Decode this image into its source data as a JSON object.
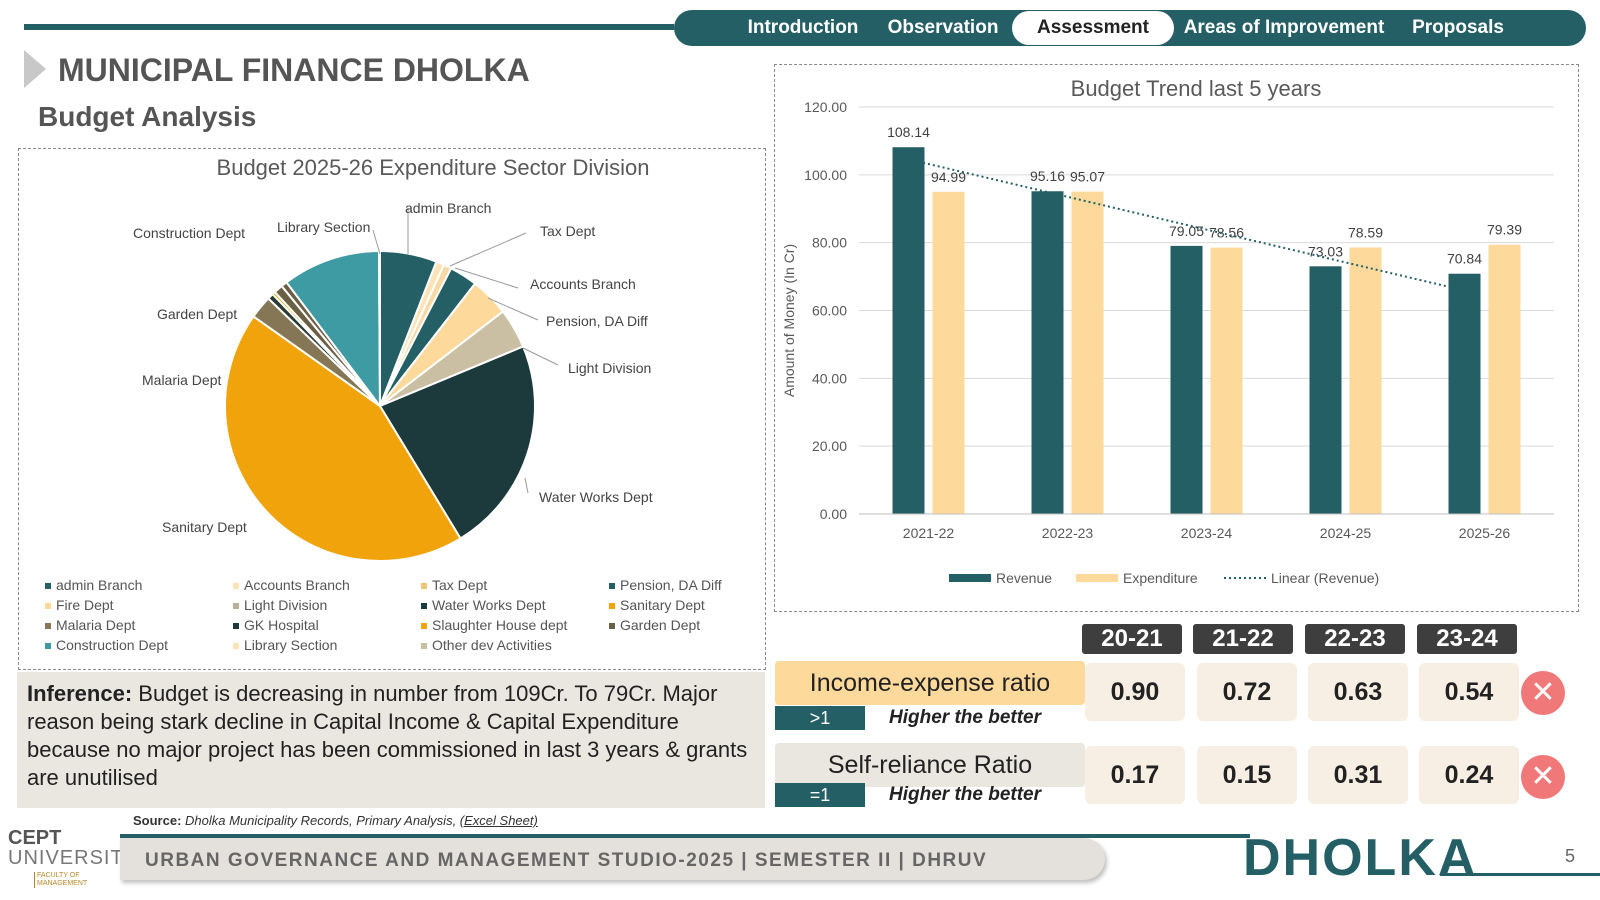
{
  "nav": {
    "items": [
      "Introduction",
      "Observation",
      "Assessment",
      "Areas of Improvement",
      "Proposals"
    ],
    "active": "Assessment"
  },
  "header": {
    "title": "MUNICIPAL FINANCE DHOLKA",
    "subtitle": "Budget Analysis"
  },
  "colors": {
    "accent": "#255f66",
    "revenue": "#255f66",
    "expenditure": "#fdd99b",
    "sanitary": "#f0a30a",
    "waterworks": "#1c3a3b"
  },
  "chart_data": [
    {
      "type": "pie",
      "title": "Budget 2025-26 Expenditure Sector Division",
      "slices": [
        {
          "name": "admin Branch",
          "value": 5.7,
          "color": "#255f66"
        },
        {
          "name": "Fire Dept",
          "value": 0.8,
          "color": "#fde3b5"
        },
        {
          "name": "Accounts Branch",
          "value": 0.8,
          "color": "#f7d9a6"
        },
        {
          "name": "Tax Dept",
          "value": 2.8,
          "color": "#255f66"
        },
        {
          "name": "Pension, DA Diff",
          "value": 3.9,
          "color": "#fdd99b"
        },
        {
          "name": "Light Division",
          "value": 4.0,
          "color": "#cbbfa3"
        },
        {
          "name": "Water Works Dept",
          "value": 21.7,
          "color": "#1c3a3b"
        },
        {
          "name": "Sanitary Dept",
          "value": 41.8,
          "color": "#f0a30a"
        },
        {
          "name": "Malaria Dept",
          "value": 2.3,
          "color": "#857756"
        },
        {
          "name": "GK Hospital",
          "value": 0.6,
          "color": "#2c3b33"
        },
        {
          "name": "Slaughter House dept",
          "value": 0.3,
          "color": "#f0a30a"
        },
        {
          "name": "Garden Dept",
          "value": 0.9,
          "color": "#6b6046"
        },
        {
          "name": "Construction Dept",
          "value": 0.6,
          "color": "#6b6046"
        },
        {
          "name": "Library Section",
          "value": 9.8,
          "color": "#3e9aa3"
        },
        {
          "name": "Other dev Activities",
          "value": 0.1,
          "color": "#cbbfa3"
        }
      ],
      "labels_shown": [
        "admin Branch",
        "Tax Dept",
        "Accounts Branch",
        "Pension, DA Diff",
        "Light Division",
        "Water Works Dept",
        "Sanitary Dept",
        "Malaria Dept",
        "Garden Dept",
        "Construction Dept",
        "Library Section"
      ],
      "legend": [
        {
          "name": "admin Branch",
          "color": "#255f66"
        },
        {
          "name": "Accounts Branch",
          "color": "#fde3b5"
        },
        {
          "name": "Tax Dept",
          "color": "#f0c57a"
        },
        {
          "name": "Pension, DA Diff",
          "color": "#255f66"
        },
        {
          "name": "Fire Dept",
          "color": "#fdd99b"
        },
        {
          "name": "Light Division",
          "color": "#b8b09a"
        },
        {
          "name": "Water Works Dept",
          "color": "#1c3a3b"
        },
        {
          "name": "Sanitary Dept",
          "color": "#f0a30a"
        },
        {
          "name": "Malaria Dept",
          "color": "#857756"
        },
        {
          "name": "GK Hospital",
          "color": "#1c3a3b"
        },
        {
          "name": "Slaughter House dept",
          "color": "#f0a30a"
        },
        {
          "name": "Garden Dept",
          "color": "#6b6046"
        },
        {
          "name": "Construction Dept",
          "color": "#3e9aa3"
        },
        {
          "name": "Library Section",
          "color": "#fde3b5"
        },
        {
          "name": "Other dev Activities",
          "color": "#cbbfa3"
        }
      ],
      "legend_position": "bottom"
    },
    {
      "type": "bar",
      "title": "Budget Trend last 5 years",
      "categories": [
        "2021-22",
        "2022-23",
        "2023-24",
        "2024-25",
        "2025-26"
      ],
      "series": [
        {
          "name": "Revenue",
          "values": [
            108.14,
            95.16,
            79.05,
            73.03,
            70.84
          ]
        },
        {
          "name": "Expenditure",
          "values": [
            94.99,
            95.07,
            78.56,
            78.59,
            79.39
          ]
        }
      ],
      "trendline": {
        "name": "Linear (Revenue)",
        "of": "Revenue"
      },
      "ylabel": "Amount of Money (In Cr)",
      "xlabel": "",
      "ylim": [
        0,
        120
      ],
      "yticks": [
        "0.00",
        "20.00",
        "40.00",
        "60.00",
        "80.00",
        "100.00",
        "120.00"
      ],
      "grid": true,
      "legend_position": "bottom"
    }
  ],
  "ratios": {
    "years": [
      "20-21",
      "21-22",
      "22-23",
      "23-24"
    ],
    "rows": [
      {
        "label": "Income-expense ratio",
        "condition": ">1",
        "note": "Higher the better",
        "values": [
          "0.90",
          "0.72",
          "0.63",
          "0.54"
        ],
        "status": "✕"
      },
      {
        "label": "Self-reliance  Ratio",
        "condition": "=1",
        "note": "Higher the better",
        "values": [
          "0.17",
          "0.15",
          "0.31",
          "0.24"
        ],
        "status": "✕"
      }
    ]
  },
  "inference": {
    "label": "Inference:",
    "text": " Budget is decreasing in number from 109Cr. To 79Cr. Major reason being stark decline in Capital Income & Capital Expenditure because no major project has been commissioned in last 3 years & grants are unutilised"
  },
  "source": {
    "label": "Source:",
    "text": " Dholka Municipality Records, Primary Analysis, ",
    "link": "(Excel Sheet)"
  },
  "footer": {
    "studio": "URBAN GOVERNANCE AND MANAGEMENT STUDIO-2025 | SEMESTER II | DHRUV",
    "city": "DHOLKA",
    "page": "5",
    "logo_line1": "CEPT",
    "logo_line2": "UNIVERSITY",
    "logo_line3": "FACULTY OF MANAGEMENT"
  }
}
